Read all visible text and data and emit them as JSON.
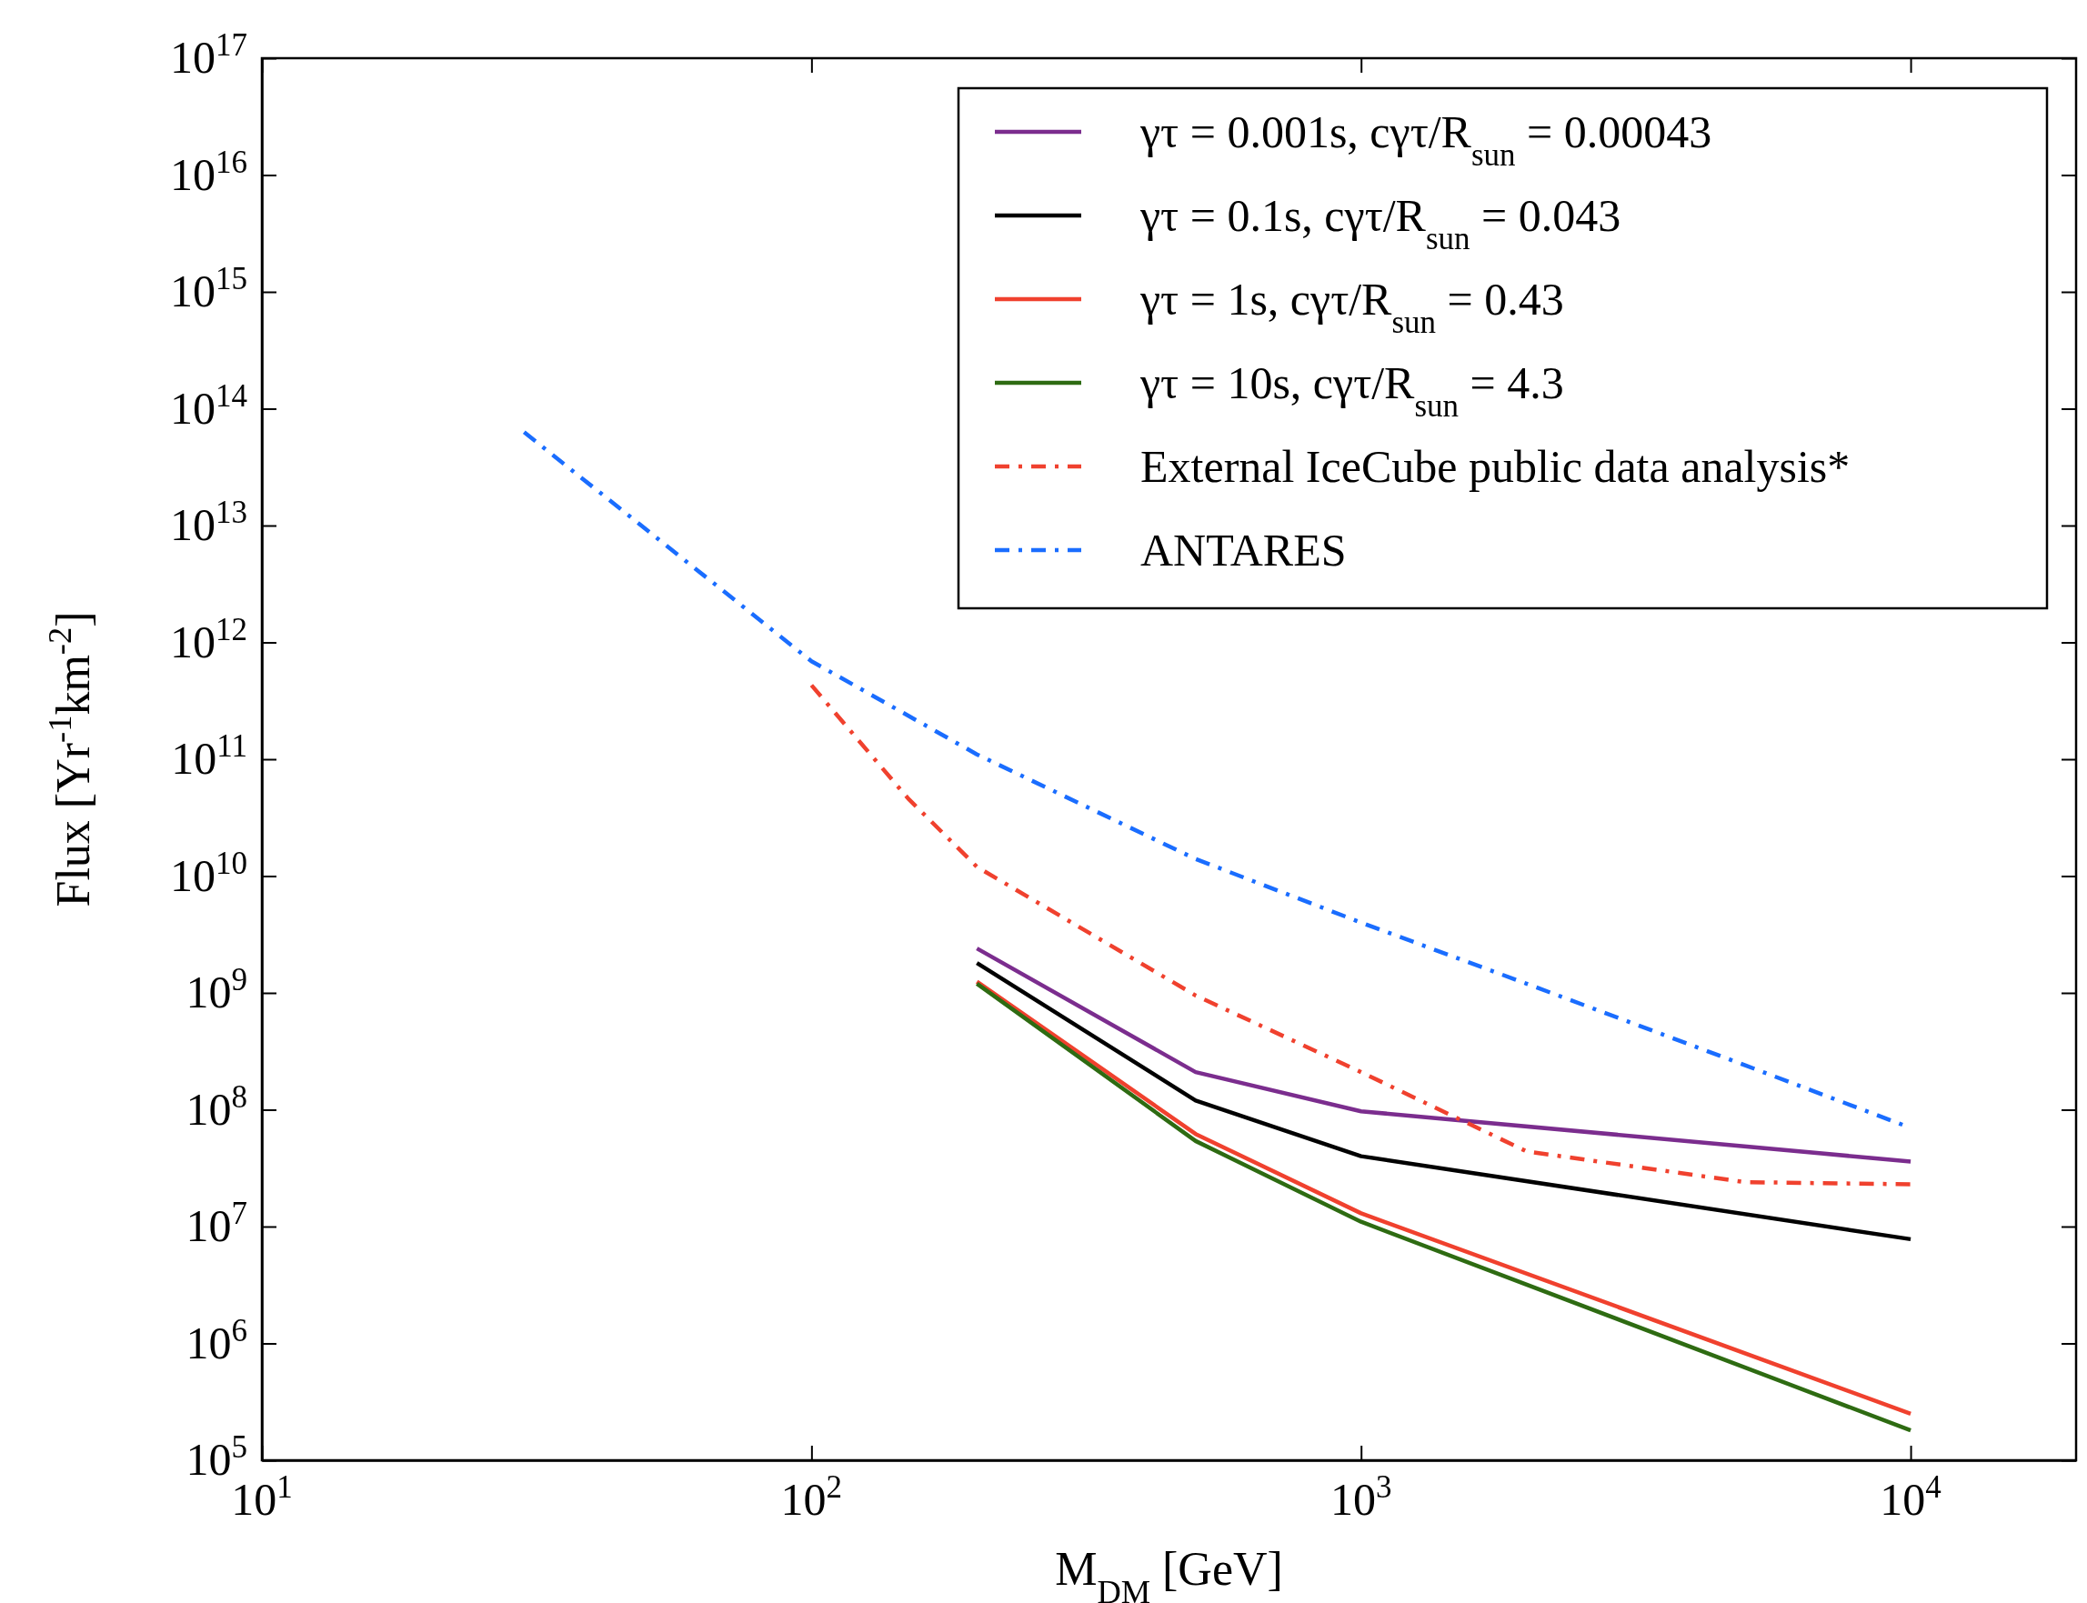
{
  "chart_data": {
    "type": "line",
    "xlabel": "M$_{DM}$ [GeV]",
    "ylabel": "Flux [Yr$^{-1}$km$^{-2}$]",
    "log": "xy",
    "xlim": [
      10,
      20000
    ],
    "ylim": [
      100000.0,
      1e+17
    ],
    "xticks": [
      {
        "value": 10,
        "label": "10$^{1}$"
      },
      {
        "value": 100,
        "label": "10$^{2}$"
      },
      {
        "value": 1000,
        "label": "10$^{3}$"
      },
      {
        "value": 10000,
        "label": "10$^{4}$"
      }
    ],
    "yticks": [
      {
        "value": 100000.0,
        "label": "10$^{5}$"
      },
      {
        "value": 1000000.0,
        "label": "10$^{6}$"
      },
      {
        "value": 10000000.0,
        "label": "10$^{7}$"
      },
      {
        "value": 100000000.0,
        "label": "10$^{8}$"
      },
      {
        "value": 1000000000.0,
        "label": "10$^{9}$"
      },
      {
        "value": 10000000000.0,
        "label": "10$^{10}$"
      },
      {
        "value": 100000000000.0,
        "label": "10$^{11}$"
      },
      {
        "value": 1000000000000.0,
        "label": "10$^{12}$"
      },
      {
        "value": 10000000000000.0,
        "label": "10$^{13}$"
      },
      {
        "value": 100000000000000.0,
        "label": "10$^{14}$"
      },
      {
        "value": 1000000000000000.0,
        "label": "10$^{15}$"
      },
      {
        "value": 1e+16,
        "label": "10$^{16}$"
      },
      {
        "value": 1e+17,
        "label": "10$^{17}$"
      }
    ],
    "grid": false,
    "legend": "top right",
    "marker": "none",
    "series": [
      {
        "name": "γτ = 0.001s, cγτ/R$_{sun}$ = 0.00043",
        "color": "#7b2d8e",
        "line_style": "solid",
        "x": [
          200,
          500,
          1000,
          10000
        ],
        "values": [
          2400000000.0,
          210000000.0,
          97000000.0,
          36000000.0
        ]
      },
      {
        "name": "γτ = 0.1s, cγτ/R$_{sun}$ = 0.043",
        "color": "#000000",
        "line_style": "solid",
        "x": [
          200,
          500,
          1000,
          10000
        ],
        "values": [
          1800000000.0,
          120000000.0,
          40000000.0,
          7800000.0
        ]
      },
      {
        "name": "γτ = 1s, cγτ/R$_{sun}$ = 0.43",
        "color": "#f0412e",
        "line_style": "solid",
        "x": [
          200,
          500,
          1000,
          10000
        ],
        "values": [
          1250000000.0,
          62000000.0,
          13000000.0,
          250000.0
        ]
      },
      {
        "name": "γτ = 10s, cγτ/R$_{sun}$ = 4.3",
        "color": "#2e6b12",
        "line_style": "solid",
        "x": [
          200,
          500,
          1000,
          10000
        ],
        "values": [
          1200000000.0,
          54000000.0,
          11000000.0,
          180000.0
        ]
      },
      {
        "name": "External IceCube public data analysis*",
        "color": "#f0412e",
        "line_style": "dashdot",
        "x": [
          100,
          150,
          200,
          500,
          1000,
          2000,
          5000,
          10000
        ],
        "values": [
          430000000000.0,
          46000000000.0,
          12000000000.0,
          950000000.0,
          210000000.0,
          44000000.0,
          24000000.0,
          23000000.0
        ]
      },
      {
        "name": "ANTARES",
        "color": "#1a6dff",
        "line_style": "dashdot",
        "x": [
          30,
          100,
          200,
          500,
          1000,
          2000,
          5000,
          10000
        ],
        "values": [
          63000000000000.0,
          690000000000.0,
          110000000000.0,
          14000000000.0,
          4000000000.0,
          1200000000.0,
          240000000.0,
          70000000.0
        ]
      }
    ]
  }
}
